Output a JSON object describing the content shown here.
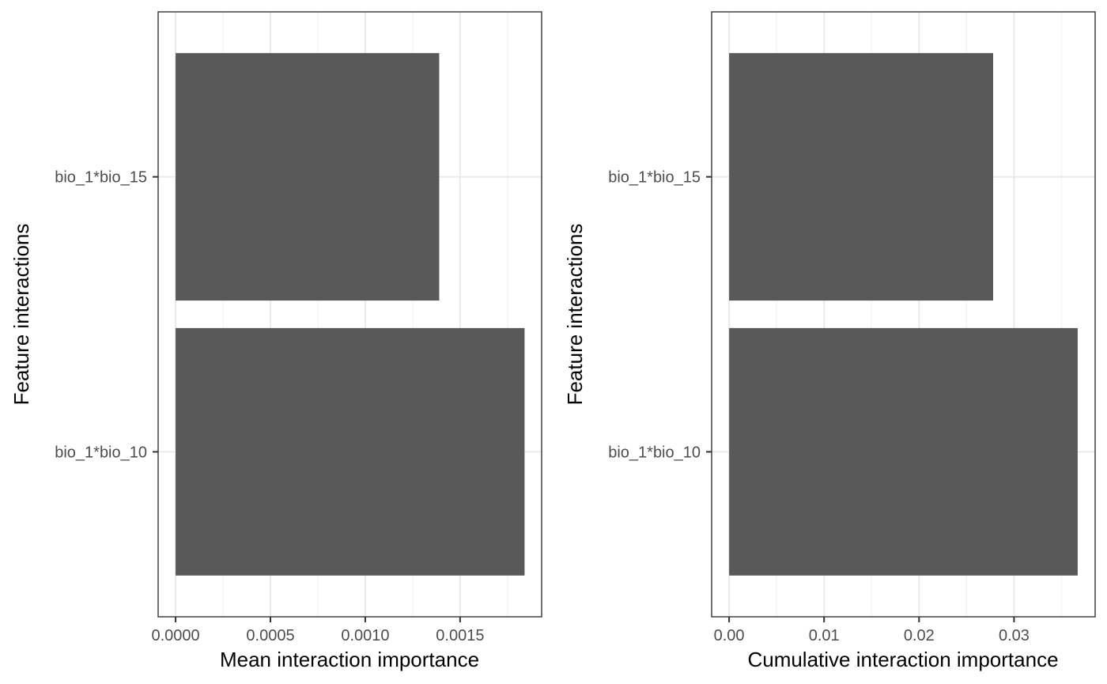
{
  "colors": {
    "bar": "#595959",
    "panel_border": "#333333",
    "grid_major": "#ebebeb",
    "grid_minor": "#f4f4f4",
    "tick_label": "#4d4d4d",
    "background": "#ffffff"
  },
  "chart_data": [
    {
      "type": "bar",
      "orientation": "horizontal",
      "categories": [
        "bio_1*bio_15",
        "bio_1*bio_10"
      ],
      "values": [
        0.00139,
        0.00184
      ],
      "xlabel": "Mean interaction importance",
      "ylabel": "Feature interactions",
      "xticks": [
        0,
        0.0005,
        0.001,
        0.0015
      ],
      "xtick_labels": [
        "0.0000",
        "0.0005",
        "0.0010",
        "0.0015"
      ],
      "xlim": [
        -9.2e-05,
        0.00193
      ],
      "grid": true,
      "legend": "none"
    },
    {
      "type": "bar",
      "orientation": "horizontal",
      "categories": [
        "bio_1*bio_15",
        "bio_1*bio_10"
      ],
      "values": [
        0.0278,
        0.0367
      ],
      "xlabel": "Cumulative interaction importance",
      "ylabel": "Feature interactions",
      "xticks": [
        0,
        0.01,
        0.02,
        0.03
      ],
      "xtick_labels": [
        "0.00",
        "0.01",
        "0.02",
        "0.03"
      ],
      "xlim": [
        -0.00184,
        0.03854
      ],
      "grid": true,
      "legend": "none"
    }
  ]
}
